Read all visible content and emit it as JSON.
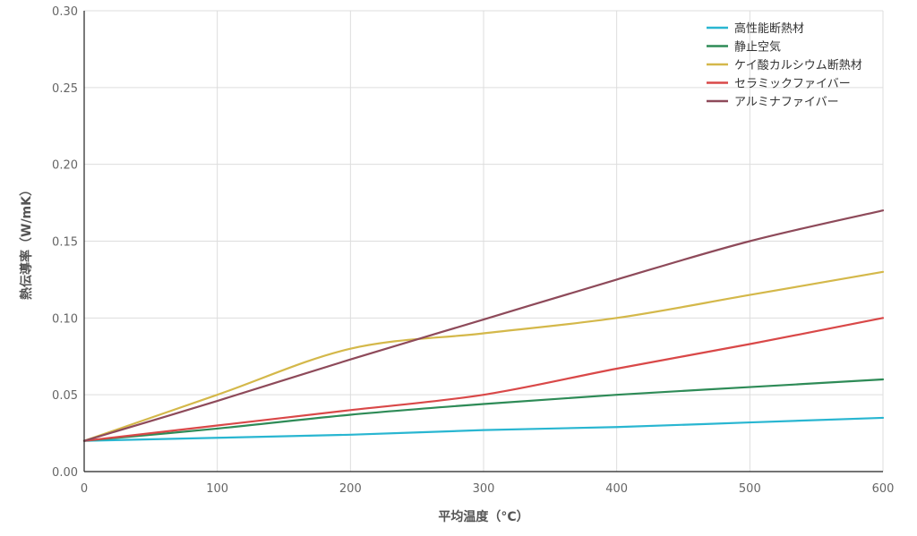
{
  "chart_data": {
    "type": "line",
    "xlabel": "平均温度（°C）",
    "ylabel": "熱伝導率（W/mK）",
    "xlim": [
      0,
      600
    ],
    "ylim": [
      0,
      0.3
    ],
    "x_ticks": [
      "0",
      "100",
      "200",
      "300",
      "400",
      "500",
      "600"
    ],
    "y_ticks": [
      "0.00",
      "0.05",
      "0.10",
      "0.15",
      "0.20",
      "0.25",
      "0.30"
    ],
    "grid": true,
    "legend_position": "top-right",
    "x": [
      0,
      100,
      200,
      300,
      400,
      500,
      600
    ],
    "series": [
      {
        "name": "高性能断熱材",
        "color": "#29b6d1",
        "values": [
          0.02,
          0.022,
          0.024,
          0.027,
          0.029,
          0.032,
          0.035
        ]
      },
      {
        "name": "静止空気",
        "color": "#2e8b57",
        "values": [
          0.02,
          0.028,
          0.037,
          0.044,
          0.05,
          0.055,
          0.06
        ]
      },
      {
        "name": "ケイ酸カルシウム断熱材",
        "color": "#d4b84a",
        "values": [
          0.02,
          0.05,
          0.08,
          0.09,
          0.1,
          0.115,
          0.13
        ]
      },
      {
        "name": "セラミックファイバー",
        "color": "#d94848",
        "values": [
          0.02,
          0.03,
          0.04,
          0.05,
          0.067,
          0.083,
          0.1
        ]
      },
      {
        "name": "アルミナファイバー",
        "color": "#8e4a5a",
        "values": [
          0.02,
          0.046,
          0.073,
          0.099,
          0.125,
          0.15,
          0.17
        ]
      }
    ]
  }
}
